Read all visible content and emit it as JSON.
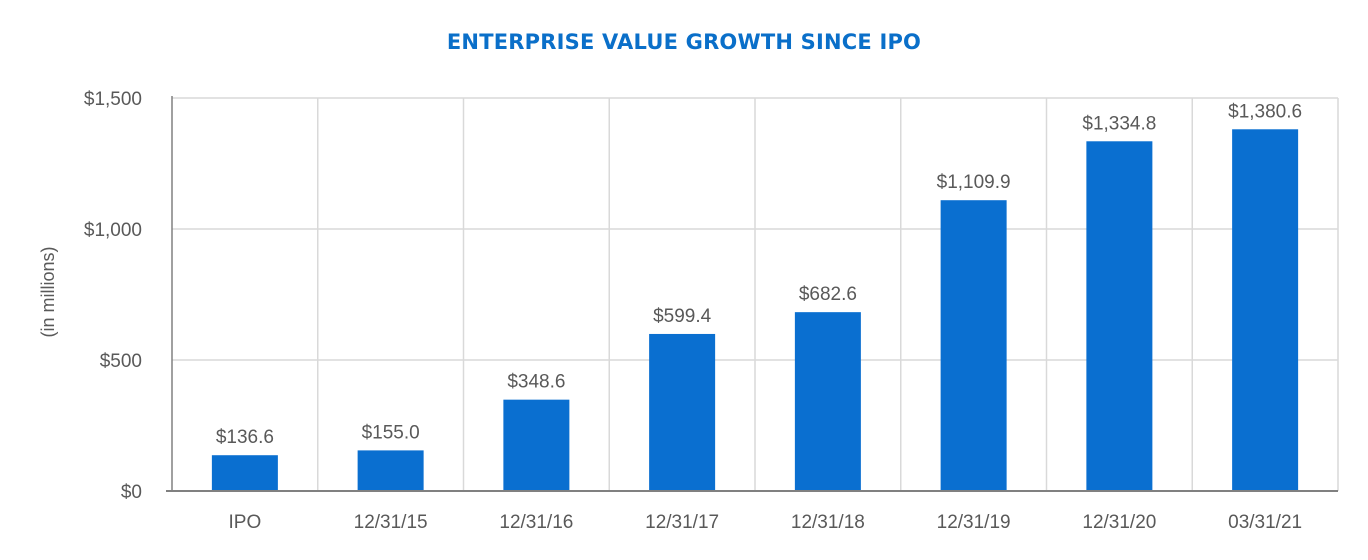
{
  "chart_data": {
    "type": "bar",
    "title": "ENTERPRISE VALUE GROWTH SINCE IPO",
    "xlabel": "",
    "ylabel": "(in millions)",
    "categories": [
      "IPO",
      "12/31/15",
      "12/31/16",
      "12/31/17",
      "12/31/18",
      "12/31/19",
      "12/31/20",
      "03/31/21"
    ],
    "values": [
      136.6,
      155.0,
      348.6,
      599.4,
      682.6,
      1109.9,
      1334.8,
      1380.6
    ],
    "data_labels": [
      "$136.6",
      "$155.0",
      "$348.6",
      "$599.4",
      "$682.6",
      "$1,109.9",
      "$1,334.8",
      "$1,380.6"
    ],
    "ylim": [
      0,
      1500
    ],
    "yticks": [
      0,
      500,
      1000,
      1500
    ],
    "ytick_labels": [
      "$0",
      "$500",
      "$1,000",
      "$1,500"
    ],
    "grid": true,
    "legend": "none",
    "colors": {
      "bar": "#0a6fd0",
      "title": "#0a6fc9",
      "grid": "#d9d9d9",
      "axis": "#808080",
      "text": "#595959"
    }
  }
}
